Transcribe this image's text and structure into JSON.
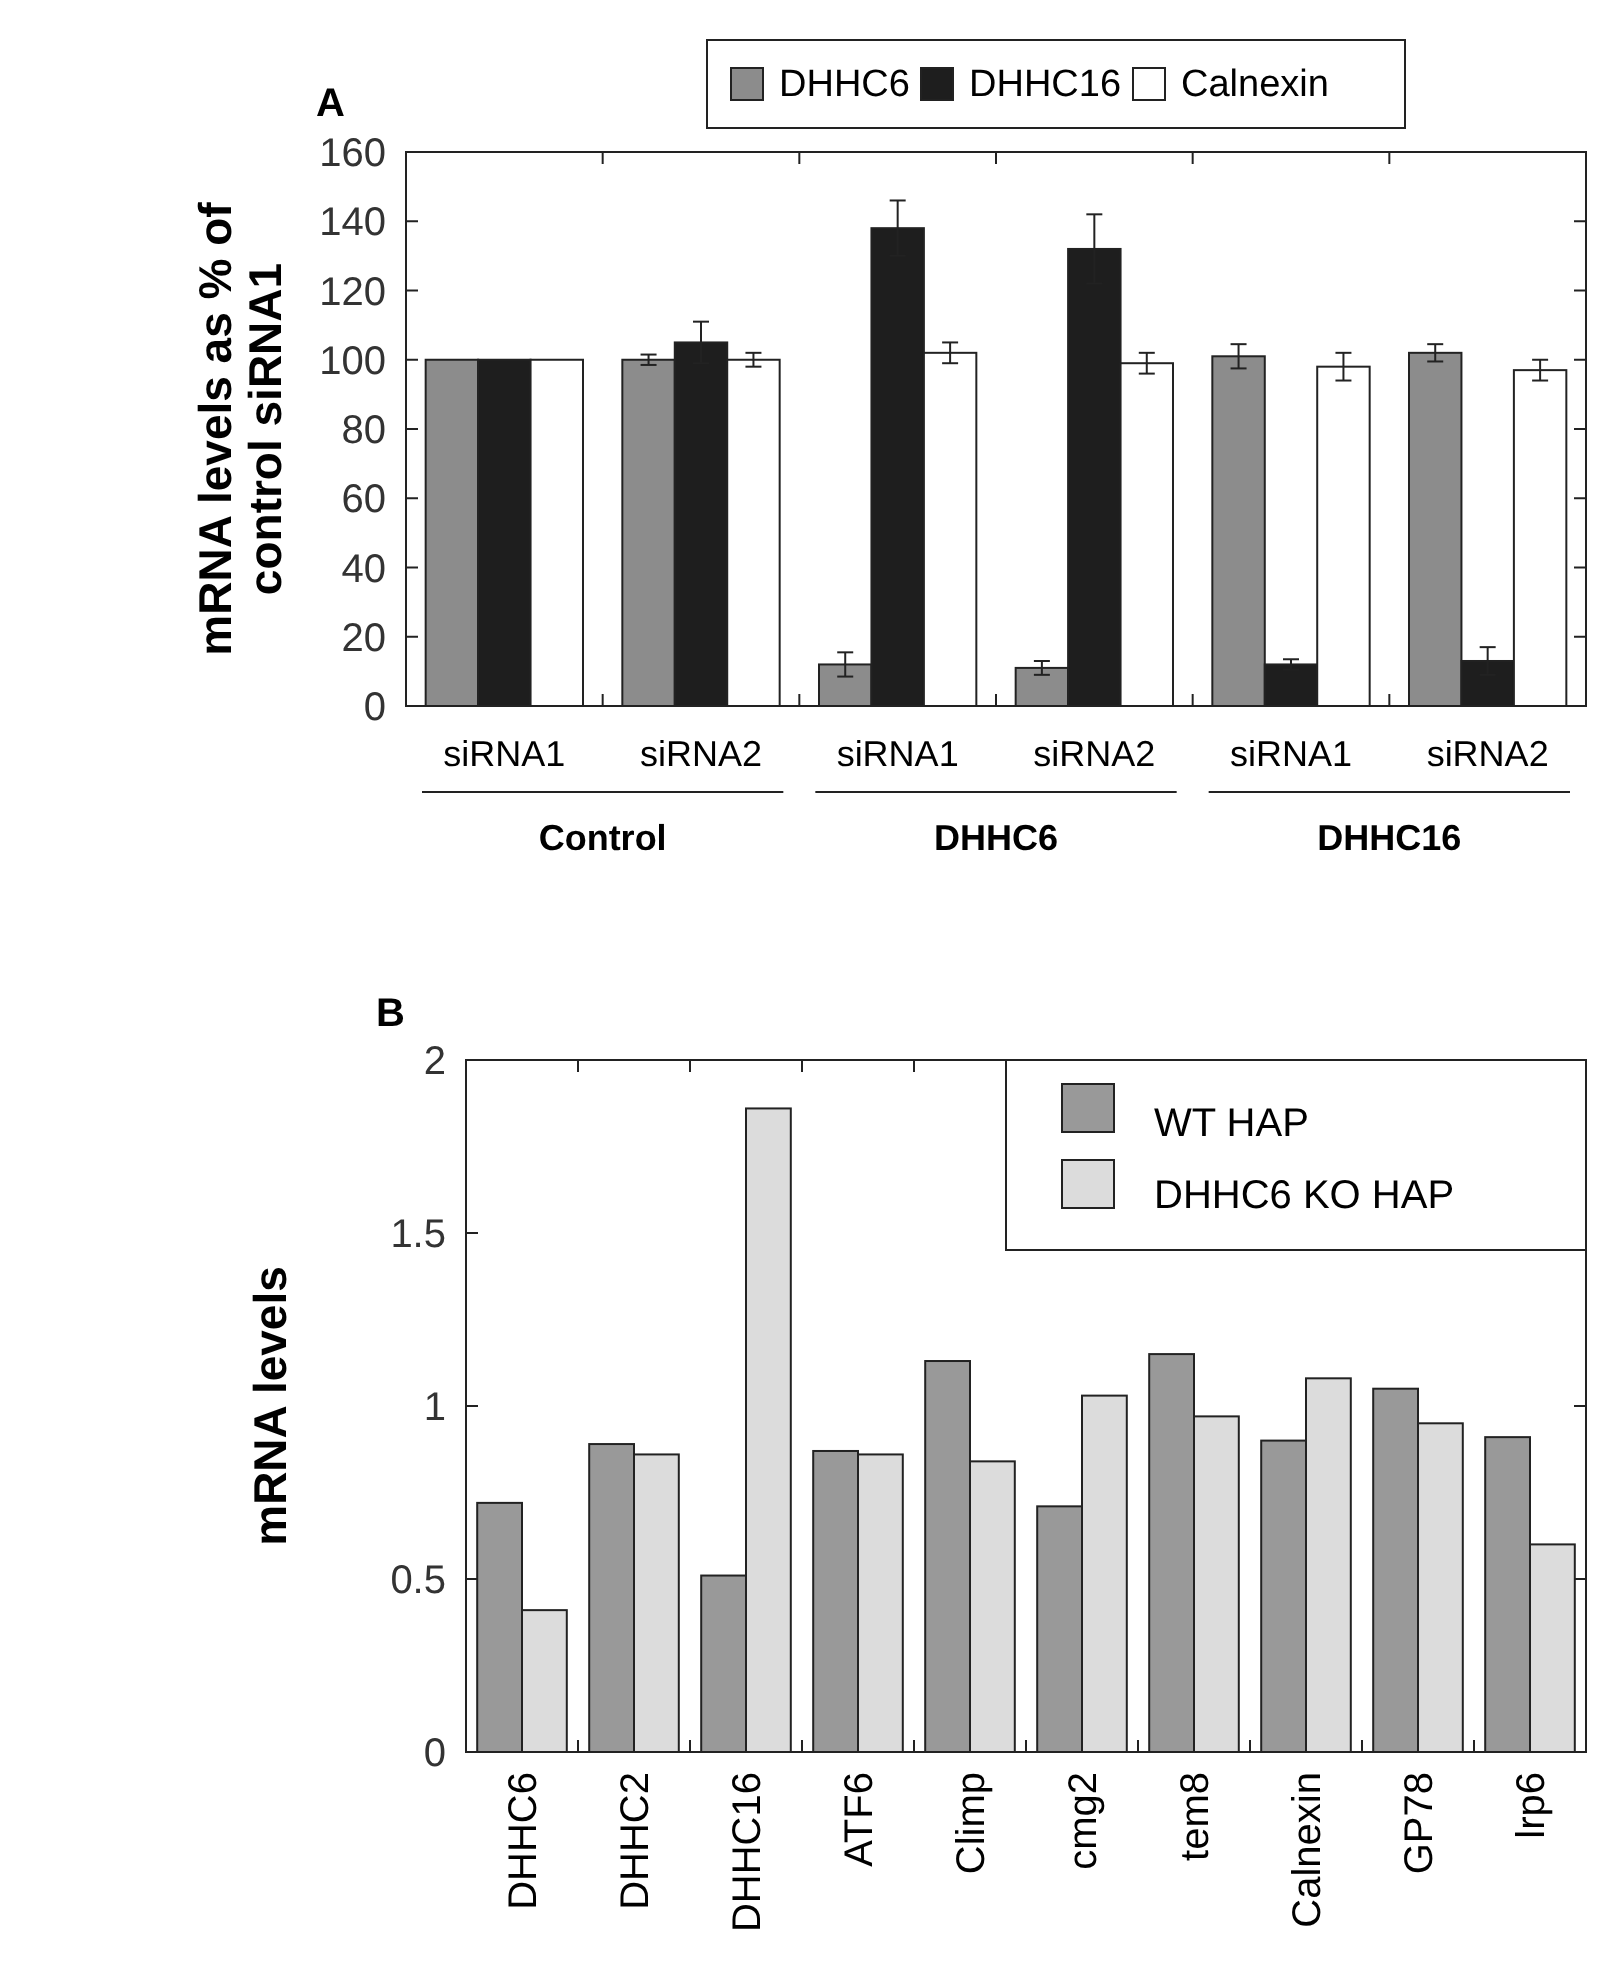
{
  "chart_data": [
    {
      "type": "bar",
      "title": "A",
      "ylabel": "mRNA levels as % of control siRNA1",
      "categories": [
        "siRNA1",
        "siRNA2",
        "siRNA1",
        "siRNA2",
        "siRNA1",
        "siRNA2"
      ],
      "series": [
        {
          "name": "DHHC6",
          "color": "#8c8c8c",
          "values": [
            100,
            100,
            12,
            11,
            101,
            102
          ],
          "errors": [
            null,
            1.5,
            3.5,
            2,
            3.5,
            2.5
          ]
        },
        {
          "name": "DHHC16",
          "color": "#1e1e1e",
          "values": [
            100,
            105,
            138,
            132,
            12,
            13
          ],
          "errors": [
            null,
            6,
            8,
            10,
            1.5,
            4
          ]
        },
        {
          "name": "Calnexin",
          "color": "#ffffff",
          "values": [
            100,
            100,
            102,
            99,
            98,
            97
          ],
          "errors": [
            null,
            2,
            3,
            3,
            4,
            3
          ]
        }
      ],
      "ylim": [
        0,
        160
      ],
      "yticks": [
        0,
        20,
        40,
        60,
        80,
        100,
        120,
        140,
        160
      ],
      "grid": false,
      "legend": "top",
      "annotations": [
        "Control",
        "DHHC6",
        "DHHC16"
      ]
    },
    {
      "type": "bar",
      "title": "B",
      "ylabel": "mRNA levels",
      "categories": [
        "DHHC6",
        "DHHC2",
        "DHHC16",
        "ATF6",
        "Climp",
        "cmg2",
        "tem8",
        "Calnexin",
        "GP78",
        "lrp6"
      ],
      "series": [
        {
          "name": "WT HAP",
          "color": "#999999",
          "values": [
            0.72,
            0.89,
            0.51,
            0.87,
            1.13,
            0.71,
            1.15,
            0.9,
            1.05,
            0.91
          ]
        },
        {
          "name": "DHHC6 KO HAP",
          "color": "#dcdcdc",
          "values": [
            0.41,
            0.86,
            1.86,
            0.86,
            0.84,
            1.03,
            0.97,
            1.08,
            0.95,
            0.6
          ]
        }
      ],
      "ylim": [
        0,
        2
      ],
      "yticks": [
        0,
        0.5,
        1,
        1.5,
        2
      ],
      "grid": false,
      "legend": "top right"
    }
  ]
}
